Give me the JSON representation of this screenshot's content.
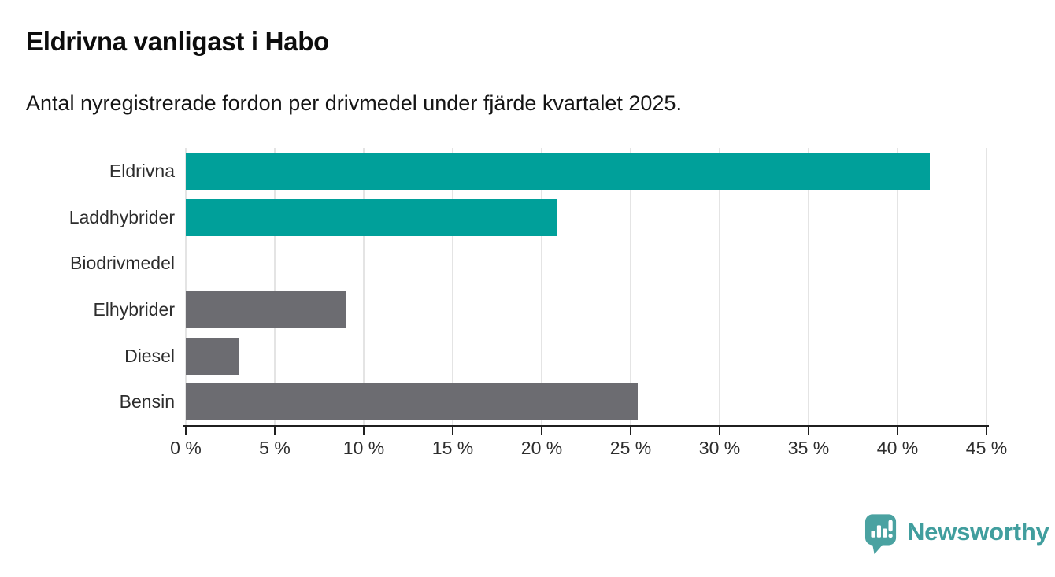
{
  "header": {
    "title": "Eldrivna vanligast i Habo",
    "subtitle": "Antal nyregistrerade fordon per drivmedel under fjärde kvartalet 2025."
  },
  "chart_data": {
    "type": "bar",
    "orientation": "horizontal",
    "title": "Eldrivna vanligast i Habo",
    "subtitle": "Antal nyregistrerade fordon per drivmedel under fjärde kvartalet 2025.",
    "categories": [
      "Eldrivna",
      "Laddhybrider",
      "Biodrivmedel",
      "Elhybrider",
      "Diesel",
      "Bensin"
    ],
    "values": [
      41.8,
      20.9,
      0,
      9,
      3,
      25.4
    ],
    "unit": "%",
    "bar_colors": [
      "#00a09a",
      "#00a09a",
      "#00a09a",
      "#6c6c71",
      "#6c6c71",
      "#6c6c71"
    ],
    "accent_color": "#00a09a",
    "neutral_color": "#6c6c71",
    "xlim": [
      0,
      45
    ],
    "tick_step": 5,
    "x_ticks": [
      "0 %",
      "5 %",
      "10 %",
      "15 %",
      "20 %",
      "25 %",
      "30 %",
      "35 %",
      "40 %",
      "45 %"
    ],
    "grid": "vertical-light",
    "legend": "none"
  },
  "footer": {
    "brand": "Newsworthy",
    "logo_icon": "newsworthy-speech-bubble-chart-icon",
    "brand_color": "#419e9e"
  }
}
